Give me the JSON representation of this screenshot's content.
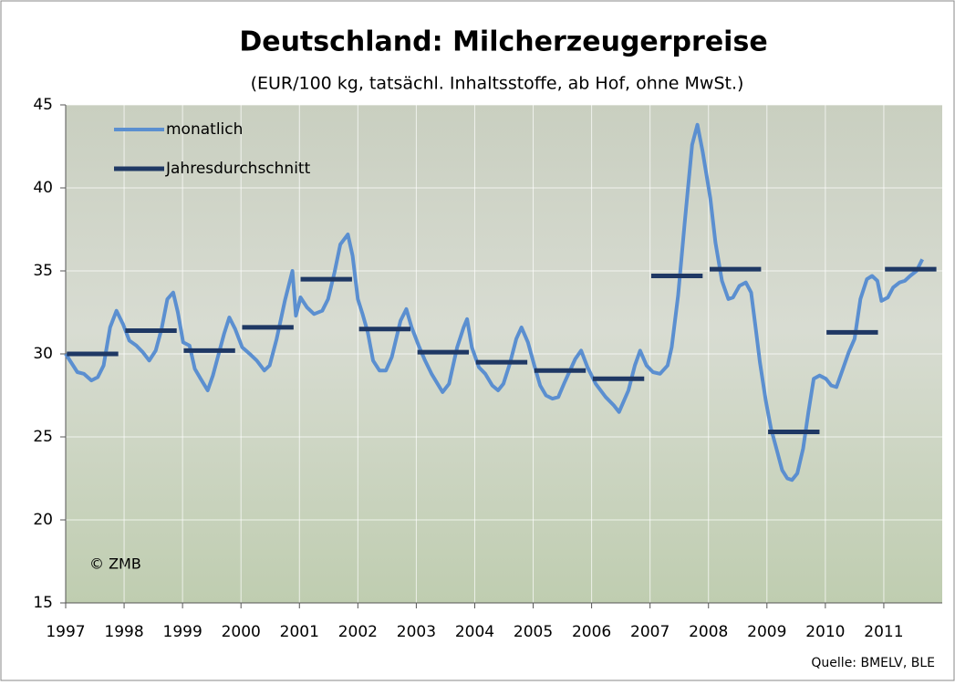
{
  "chart_data": {
    "type": "line",
    "title": "Deutschland:  Milcherzeugerpreise",
    "subtitle": "(EUR/100 kg, tatsächl. Inhaltsstoffe, ab Hof, ohne MwSt.)",
    "source": "Quelle: BMELV, BLE",
    "annotation": "© ZMB",
    "xlim": [
      1997,
      2012
    ],
    "xticks": [
      1997,
      1998,
      1999,
      2000,
      2001,
      2002,
      2003,
      2004,
      2005,
      2006,
      2007,
      2008,
      2009,
      2010,
      2011
    ],
    "ylim": [
      15,
      45
    ],
    "yticks": [
      15,
      20,
      25,
      30,
      35,
      40,
      45
    ],
    "grid": true,
    "legend": "top-left",
    "series": [
      {
        "name": "monatlich",
        "color": "#5b8fd0",
        "style": "line",
        "x": [
          1997.0,
          1997.2,
          1997.31,
          1997.44,
          1997.55,
          1997.65,
          1997.76,
          1997.87,
          1997.98,
          1998.09,
          1998.21,
          1998.32,
          1998.43,
          1998.54,
          1998.64,
          1998.74,
          1998.84,
          1998.92,
          1999.01,
          1999.12,
          1999.21,
          1999.31,
          1999.43,
          1999.52,
          1999.71,
          1999.8,
          1999.9,
          2000.02,
          2000.15,
          2000.27,
          2000.4,
          2000.49,
          2000.61,
          2000.75,
          2000.88,
          2000.94,
          2001.02,
          2001.13,
          2001.25,
          2001.39,
          2001.49,
          2001.6,
          2001.7,
          2001.83,
          2001.91,
          2002.0,
          2002.08,
          2002.17,
          2002.26,
          2002.37,
          2002.48,
          2002.58,
          2002.73,
          2002.83,
          2002.92,
          2003.04,
          2003.15,
          2003.26,
          2003.45,
          2003.56,
          2003.7,
          2003.81,
          2003.87,
          2003.95,
          2004.07,
          2004.18,
          2004.3,
          2004.4,
          2004.49,
          2004.6,
          2004.71,
          2004.8,
          2004.91,
          2005.02,
          2005.12,
          2005.22,
          2005.33,
          2005.43,
          2005.54,
          2005.72,
          2005.82,
          2005.93,
          2006.07,
          2006.24,
          2006.38,
          2006.47,
          2006.63,
          2006.74,
          2006.83,
          2006.94,
          2007.05,
          2007.17,
          2007.3,
          2007.37,
          2007.48,
          2007.59,
          2007.72,
          2007.81,
          2007.9,
          2008.03,
          2008.12,
          2008.23,
          2008.34,
          2008.42,
          2008.53,
          2008.64,
          2008.73,
          2008.81,
          2008.88,
          2008.98,
          2009.07,
          2009.17,
          2009.26,
          2009.35,
          2009.43,
          2009.52,
          2009.62,
          2009.71,
          2009.8,
          2009.9,
          2010.01,
          2010.1,
          2010.19,
          2010.3,
          2010.4,
          2010.5,
          2010.6,
          2010.71,
          2010.8,
          2010.89,
          2010.96,
          2011.07,
          2011.16,
          2011.27,
          2011.36,
          2011.45,
          2011.56,
          2011.66
        ],
        "values": [
          30.0,
          28.9,
          28.8,
          28.4,
          28.6,
          29.3,
          31.6,
          32.6,
          31.8,
          30.8,
          30.5,
          30.1,
          29.6,
          30.2,
          31.5,
          33.3,
          33.7,
          32.5,
          30.7,
          30.5,
          29.1,
          28.5,
          27.8,
          28.7,
          31.2,
          32.2,
          31.5,
          30.4,
          30.0,
          29.6,
          29.0,
          29.3,
          30.9,
          33.2,
          35.0,
          32.3,
          33.4,
          32.8,
          32.4,
          32.6,
          33.3,
          34.9,
          36.6,
          37.2,
          35.9,
          33.3,
          32.4,
          31.3,
          29.6,
          29.0,
          29.0,
          29.8,
          32.0,
          32.7,
          31.6,
          30.5,
          29.6,
          28.8,
          27.7,
          28.2,
          30.4,
          31.6,
          32.1,
          30.4,
          29.2,
          28.8,
          28.1,
          27.8,
          28.2,
          29.4,
          30.9,
          31.6,
          30.7,
          29.3,
          28.1,
          27.5,
          27.3,
          27.4,
          28.3,
          29.7,
          30.2,
          29.2,
          28.2,
          27.4,
          26.9,
          26.5,
          27.8,
          29.3,
          30.2,
          29.3,
          28.9,
          28.8,
          29.3,
          30.4,
          33.5,
          37.8,
          42.6,
          43.8,
          42.2,
          39.4,
          36.7,
          34.4,
          33.3,
          33.4,
          34.1,
          34.3,
          33.7,
          31.5,
          29.5,
          27.2,
          25.5,
          24.2,
          23.0,
          22.5,
          22.4,
          22.8,
          24.3,
          26.5,
          28.5,
          28.7,
          28.5,
          28.1,
          28.0,
          29.1,
          30.1,
          30.9,
          33.3,
          34.5,
          34.7,
          34.4,
          33.2,
          33.4,
          34.0,
          34.3,
          34.4,
          34.7,
          35.0,
          35.7
        ]
      },
      {
        "name": "Jahresdurchschnitt",
        "color": "#1f3864",
        "style": "annual",
        "x": [
          1997,
          1998,
          1999,
          2000,
          2001,
          2002,
          2003,
          2004,
          2005,
          2006,
          2007,
          2008,
          2009,
          2010,
          2011
        ],
        "values": [
          30.0,
          31.4,
          30.2,
          31.6,
          34.5,
          31.5,
          30.1,
          29.5,
          29.0,
          28.5,
          34.7,
          35.1,
          25.3,
          31.3,
          35.1
        ]
      }
    ]
  }
}
